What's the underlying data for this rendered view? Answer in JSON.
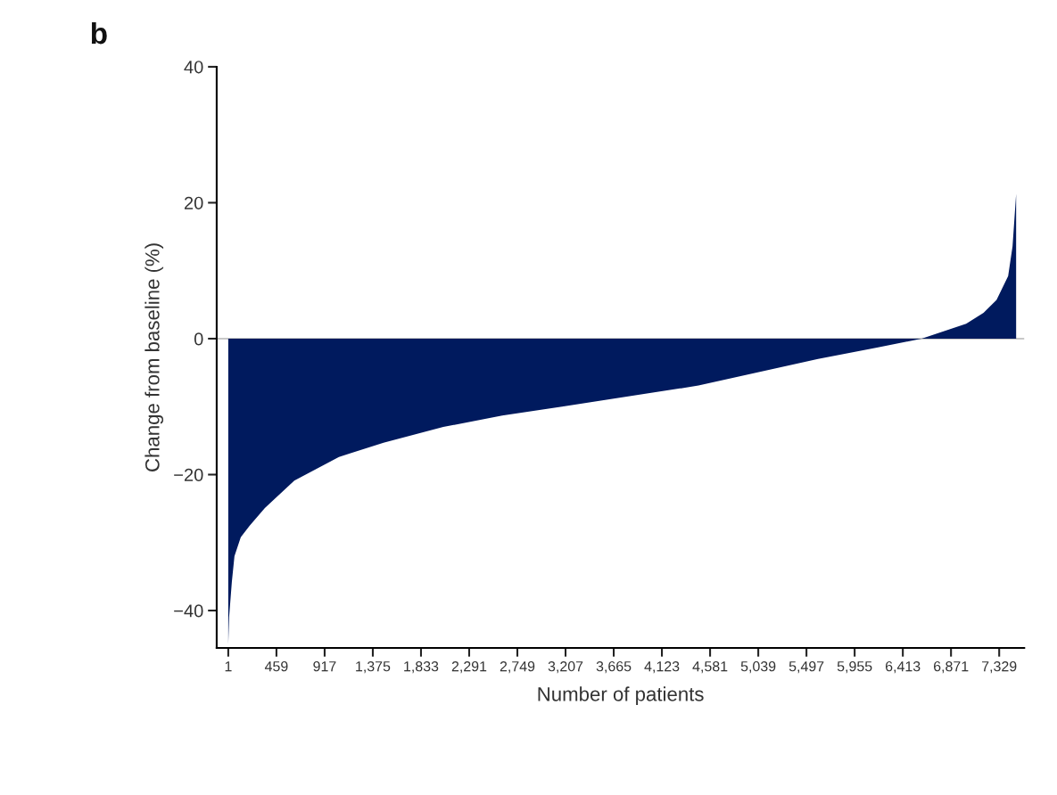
{
  "chart_data": {
    "type": "area",
    "title": "b",
    "xlabel": "Number of patients",
    "ylabel": "Change from baseline (%)",
    "series": [
      {
        "color": "#001a5e",
        "x": [
          1,
          9,
          35,
          60,
          120,
          205,
          349,
          629,
          1053,
          1477,
          2045,
          2605,
          3173,
          3597,
          4471,
          5607,
          6167,
          6591,
          7015,
          7180,
          7304,
          7414,
          7456,
          7490
        ],
        "values": [
          -45,
          -41,
          -35.8,
          -32,
          -29.2,
          -27.5,
          -24.9,
          -20.9,
          -17.4,
          -15.3,
          -13.0,
          -11.3,
          -10.0,
          -9.0,
          -6.9,
          -3.0,
          -1.3,
          0,
          2.2,
          3.8,
          5.7,
          9.2,
          13.6,
          21.3
        ]
      }
    ],
    "ref_lines": [
      {
        "axis": "y",
        "value": 0,
        "color": "#c8c8c8"
      }
    ],
    "xlim": [
      -109,
      7567
    ],
    "ylim": [
      -45.5,
      40
    ],
    "xticks": [
      1,
      459,
      917,
      {
        "value": 1375,
        "label": "1,375"
      },
      {
        "value": 1833,
        "label": "1,833"
      },
      {
        "value": 2291,
        "label": "2,291"
      },
      {
        "value": 2749,
        "label": "2,749"
      },
      {
        "value": 3207,
        "label": "3,207"
      },
      {
        "value": 3665,
        "label": "3,665"
      },
      {
        "value": 4123,
        "label": "4,123"
      },
      {
        "value": 4581,
        "label": "4,581"
      },
      {
        "value": 5039,
        "label": "5,039"
      },
      {
        "value": 5497,
        "label": "5,497"
      },
      {
        "value": 5955,
        "label": "5,955"
      },
      {
        "value": 6413,
        "label": "6,413"
      },
      {
        "value": 6871,
        "label": "6,871"
      },
      {
        "value": 7329,
        "label": "7,329"
      }
    ],
    "yticks": [
      {
        "value": -40,
        "label": "−40"
      },
      {
        "value": -20,
        "label": "−20"
      },
      0,
      20,
      40
    ],
    "grid": false,
    "legend": false
  }
}
